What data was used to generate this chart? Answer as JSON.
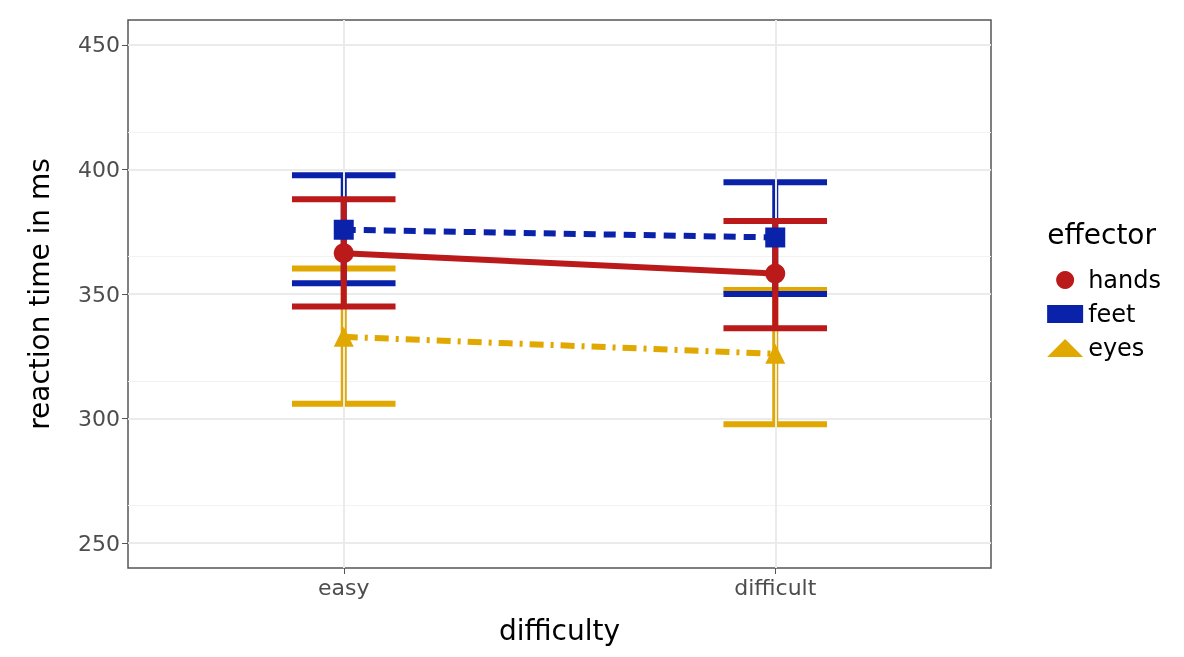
{
  "chart_data": {
    "type": "line",
    "xlabel": "difficulty",
    "ylabel": "reaction time in ms",
    "legend_title": "effector",
    "categories": [
      "easy",
      "difficult"
    ],
    "series": [
      {
        "name": "hands",
        "color": "#bb1a1a",
        "values": [
          366.4,
          358.2
        ],
        "errors": [
          [
            345,
            388
          ],
          [
            336.3,
            379.3
          ]
        ],
        "marker": "circle",
        "line_style": "solid"
      },
      {
        "name": "feet",
        "color": "#0a22aa",
        "values": [
          375.8,
          372.7
        ],
        "errors": [
          [
            354.3,
            397.7
          ],
          [
            350,
            394.9
          ]
        ],
        "marker": "square",
        "line_style": "dashed"
      },
      {
        "name": "eyes",
        "color": "#e0a800",
        "values": [
          332.8,
          326
        ],
        "errors": [
          [
            305.9,
            360.2
          ],
          [
            297.7,
            351.6
          ]
        ],
        "marker": "triangle",
        "line_style": "dotted"
      }
    ],
    "ylim": [
      240,
      460
    ],
    "yticks": [
      250,
      300,
      350,
      400,
      450
    ],
    "grid": true,
    "legend": "right"
  }
}
